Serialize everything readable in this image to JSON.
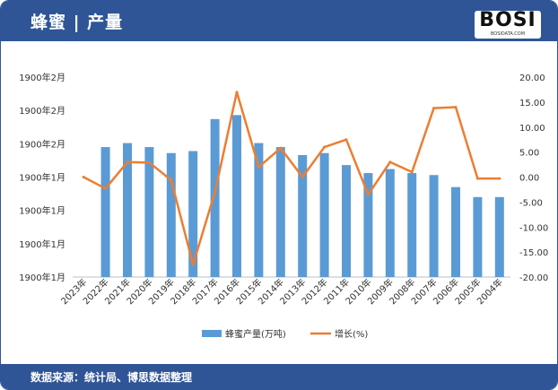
{
  "header": {
    "title": "蜂蜜 | 产量"
  },
  "logo": {
    "text": "BOSI",
    "sub": "BOSIDATA.COM"
  },
  "footer": {
    "text": "数据来源：统计局、博思数据整理"
  },
  "colors": {
    "bar": "#5b9bd5",
    "line": "#ed7d31",
    "header": "#2f5597"
  },
  "chart_data": {
    "type": "bar",
    "categories": [
      "2023年",
      "2022年",
      "2021年",
      "2020年",
      "2019年",
      "2018年",
      "2017年",
      "2016年",
      "2015年",
      "2014年",
      "2013年",
      "2012年",
      "2011年",
      "2010年",
      "2009年",
      "2008年",
      "2007年",
      "2006年",
      "2005年",
      "2004年"
    ],
    "left_axis": {
      "tick_labels": [
        "1900年1月",
        "1900年1月",
        "1900年1月",
        "1900年1月",
        "1900年2月",
        "1900年2月",
        "1900年2月"
      ],
      "range": [
        0,
        100
      ]
    },
    "right_axis": {
      "tick_labels": [
        "-20.00",
        "-15.00",
        "-10.00",
        "-5.00",
        "0.00",
        "5.00",
        "10.00",
        "15.00",
        "20.00"
      ],
      "ylim": [
        -20,
        20
      ]
    },
    "series": [
      {
        "name": "蜂蜜产量(万吨)",
        "type": "bar",
        "axis": "left",
        "values": [
          null,
          65,
          67,
          65,
          62,
          63,
          79,
          81,
          67,
          65,
          61,
          62,
          56,
          52,
          54,
          52,
          51,
          45,
          40,
          40
        ]
      },
      {
        "name": "增长(%)",
        "type": "line",
        "axis": "right",
        "values": [
          0,
          -2.3,
          3,
          2.9,
          -0.6,
          -17.5,
          -3,
          17,
          2,
          5.8,
          0,
          6,
          7.5,
          -3.5,
          3,
          1,
          13.8,
          14,
          -0.3,
          -0.3
        ]
      }
    ],
    "legend_position": "bottom",
    "grid": false
  }
}
